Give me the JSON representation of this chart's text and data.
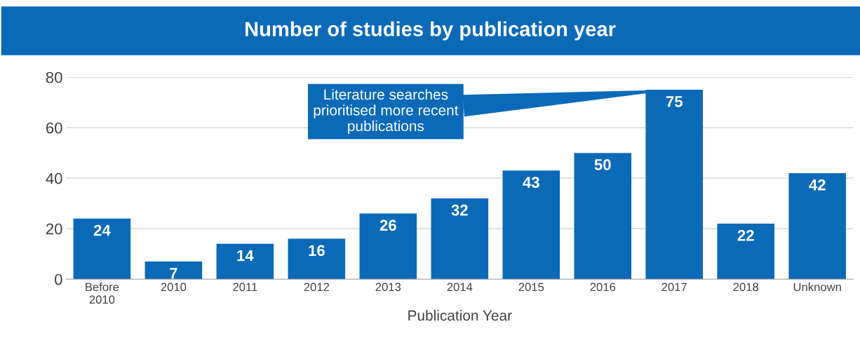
{
  "chart_data": {
    "type": "bar",
    "title": "Number of studies by publication year",
    "xlabel": "Publication Year",
    "categories": [
      "Before\n2010",
      "2010",
      "2011",
      "2012",
      "2013",
      "2014",
      "2015",
      "2016",
      "2017",
      "2018",
      "Unknown"
    ],
    "values": [
      24,
      7,
      14,
      16,
      26,
      32,
      43,
      50,
      75,
      22,
      42
    ],
    "color": "#0a6ab8",
    "ylim": [
      0,
      80
    ],
    "yticks": [
      0,
      20,
      40,
      60,
      80
    ],
    "grid": "y",
    "data_labels": true,
    "annotations": [
      {
        "text": "Literature searches\nprioritised more recent\npublications",
        "x": "2017",
        "y": 75
      }
    ]
  }
}
